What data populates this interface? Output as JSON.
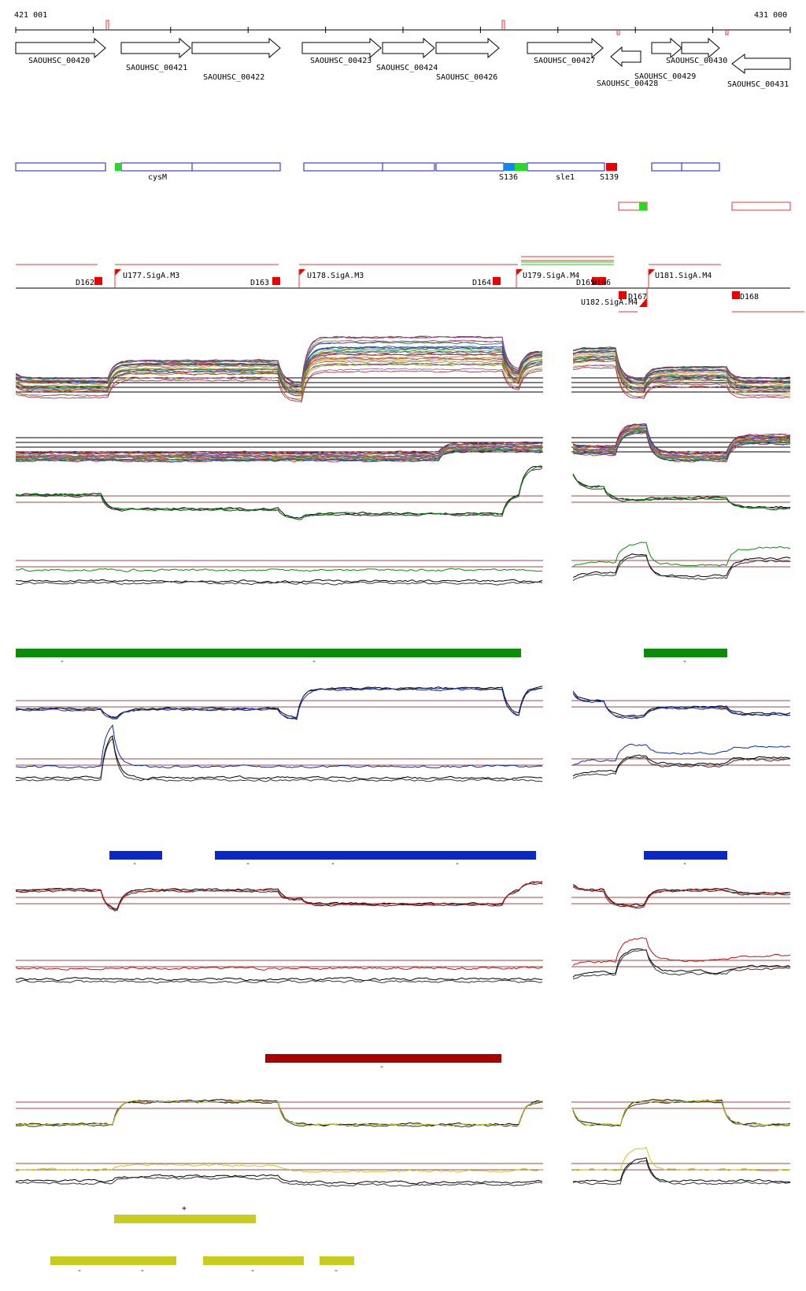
{
  "header": {
    "start_coord": "421 001",
    "end_coord": "431 000"
  },
  "genes": [
    {
      "id": "SAOUHSC_00420",
      "strand": "+"
    },
    {
      "id": "SAOUHSC_00421",
      "strand": "+"
    },
    {
      "id": "SAOUHSC_00422",
      "strand": "+"
    },
    {
      "id": "SAOUHSC_00423",
      "strand": "+"
    },
    {
      "id": "SAOUHSC_00424",
      "strand": "+"
    },
    {
      "id": "SAOUHSC_00426",
      "strand": "+"
    },
    {
      "id": "SAOUHSC_00427",
      "strand": "+"
    },
    {
      "id": "SAOUHSC_00428",
      "strand": "-"
    },
    {
      "id": "SAOUHSC_00429",
      "strand": "+"
    },
    {
      "id": "SAOUHSC_00430",
      "strand": "+"
    },
    {
      "id": "SAOUHSC_00431",
      "strand": "-"
    }
  ],
  "annotations": {
    "cysM": "cysM",
    "sle1": "sle1",
    "s136": "S136",
    "s139": "S139"
  },
  "regulation": {
    "d162": "D162",
    "u177": "U177.SigA.M3",
    "d163": "D163",
    "u178": "U178.SigA.M3",
    "d164": "D164",
    "u179": "U179.SigA.M4",
    "d165": "D165",
    "d166": "D166",
    "d167": "D167",
    "u181": "U181.SigA.M4",
    "u182": "U182.SigA.M4",
    "d168": "D168"
  },
  "segments": {
    "green_1_label": "-",
    "green_2_label": "-",
    "green_3_label": "-",
    "blue_1_label": "-",
    "blue_2_label": "-",
    "blue_3_label": "-",
    "blue_4_label": "-",
    "blue_5_label": "-",
    "red_1_label": "-",
    "yellow_top_label": "+",
    "yellow_1_label": "-",
    "yellow_2_label": "-",
    "yellow_3_label": "-",
    "yellow_4_label": "-"
  },
  "colors": {
    "green": "#0a8c0a",
    "blue": "#0a28c8",
    "red": "#aa0000",
    "yellow": "#c8cc1e",
    "gene_box": "#1a1ad2",
    "mark_red": "#ee0000"
  }
}
